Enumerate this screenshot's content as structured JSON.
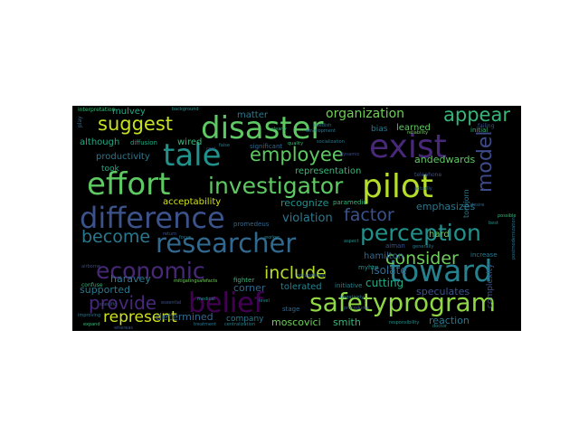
{
  "colors": {
    "background": "#ffffff",
    "cloud_background": "#000000",
    "palette": [
      "#440154",
      "#3b528b",
      "#21918c",
      "#5ec962",
      "#fde725",
      "#31688e",
      "#35b779",
      "#482878"
    ]
  },
  "words": [
    {
      "text": "difference",
      "color": "#3b528b"
    },
    {
      "text": "disaster",
      "color": "#5ec962"
    },
    {
      "text": "tale",
      "color": "#21918c"
    },
    {
      "text": "exist",
      "color": "#482878"
    },
    {
      "text": "effort",
      "color": "#5ec962"
    },
    {
      "text": "pilot",
      "color": "#b5de2b"
    },
    {
      "text": "researcher",
      "color": "#31688e"
    },
    {
      "text": "economic",
      "color": "#482878"
    },
    {
      "text": "toward",
      "color": "#26828e"
    },
    {
      "text": "belief",
      "color": "#440154"
    },
    {
      "text": "safetyprogram",
      "color": "#8fd744"
    },
    {
      "text": "investigator",
      "color": "#5ec962"
    },
    {
      "text": "perception",
      "color": "#21918c"
    },
    {
      "text": "employee",
      "color": "#5ec962"
    },
    {
      "text": "suggest",
      "color": "#c8e020"
    },
    {
      "text": "appear",
      "color": "#35b779"
    },
    {
      "text": "consider",
      "color": "#6ece58"
    },
    {
      "text": "model",
      "color": "#3e4a89"
    },
    {
      "text": "factor",
      "color": "#3b528b"
    },
    {
      "text": "become",
      "color": "#2a788e"
    },
    {
      "text": "include",
      "color": "#b5de2b"
    },
    {
      "text": "provide",
      "color": "#482878"
    },
    {
      "text": "represent",
      "color": "#d0e11c"
    },
    {
      "text": "organization",
      "color": "#6ece58"
    },
    {
      "text": "productivity",
      "color": "#2a788e"
    },
    {
      "text": "although",
      "color": "#22a884"
    },
    {
      "text": "andedwards",
      "color": "#5ec962"
    },
    {
      "text": "representation",
      "color": "#35b779"
    },
    {
      "text": "violation",
      "color": "#2a788e"
    },
    {
      "text": "recognize",
      "color": "#21918c"
    },
    {
      "text": "emphasizes",
      "color": "#2a788e"
    },
    {
      "text": "hamilton",
      "color": "#31688e"
    },
    {
      "text": "haravey",
      "color": "#2a788e"
    },
    {
      "text": "supported",
      "color": "#2a788e"
    },
    {
      "text": "determined",
      "color": "#31688e"
    },
    {
      "text": "cutting",
      "color": "#22a884"
    },
    {
      "text": "isolate",
      "color": "#31688e"
    },
    {
      "text": "speculates",
      "color": "#3b528b"
    },
    {
      "text": "reaction",
      "color": "#2a788e"
    },
    {
      "text": "moscovici",
      "color": "#6ece58"
    },
    {
      "text": "smith",
      "color": "#35b779"
    },
    {
      "text": "company",
      "color": "#2a788e"
    },
    {
      "text": "tolerated",
      "color": "#26828e"
    },
    {
      "text": "acceptability",
      "color": "#d0e11c"
    },
    {
      "text": "took",
      "color": "#22a884"
    },
    {
      "text": "hard",
      "color": "#6ece58"
    },
    {
      "text": "wired",
      "color": "#35b779"
    },
    {
      "text": "learned",
      "color": "#5ec962"
    },
    {
      "text": "matter",
      "color": "#2a788e"
    },
    {
      "text": "mulvey",
      "color": "#22a884"
    },
    {
      "text": "interpretation",
      "color": "#35b779"
    },
    {
      "text": "diffusion",
      "color": "#22a884"
    },
    {
      "text": "bias",
      "color": "#2a788e"
    },
    {
      "text": "corner",
      "color": "#31688e"
    },
    {
      "text": "stage",
      "color": "#31688e"
    },
    {
      "text": "initial",
      "color": "#35b779"
    },
    {
      "text": "significant",
      "color": "#31688e"
    },
    {
      "text": "initiative",
      "color": "#26828e"
    },
    {
      "text": "myhre",
      "color": "#21918c"
    },
    {
      "text": "paramedic",
      "color": "#35b779"
    },
    {
      "text": "aiman",
      "color": "#3b528b"
    },
    {
      "text": "telephone",
      "color": "#3b528b"
    },
    {
      "text": "increase",
      "color": "#2a788e"
    },
    {
      "text": "complexity",
      "color": "#3b528b"
    },
    {
      "text": "confuse",
      "color": "#35b779"
    },
    {
      "text": "fighter",
      "color": "#35b779"
    },
    {
      "text": "mitigatingsafefacts",
      "color": "#6ece58"
    },
    {
      "text": "responsibility",
      "color": "#21918c"
    },
    {
      "text": "treatment",
      "color": "#2a788e"
    },
    {
      "text": "medical",
      "color": "#21918c"
    },
    {
      "text": "reliability",
      "color": "#6ece58"
    },
    {
      "text": "development",
      "color": "#2a788e"
    },
    {
      "text": "socialization",
      "color": "#2a788e"
    },
    {
      "text": "torbjorn",
      "color": "#2a788e"
    },
    {
      "text": "occupational",
      "color": "#31688e"
    },
    {
      "text": "procedures",
      "color": "#3b528b"
    },
    {
      "text": "airborne",
      "color": "#3e4a89"
    },
    {
      "text": "specific",
      "color": "#3b528b"
    },
    {
      "text": "swedish",
      "color": "#2a788e"
    },
    {
      "text": "failing",
      "color": "#3b528b"
    },
    {
      "text": "background",
      "color": "#21918c"
    },
    {
      "text": "promedeus",
      "color": "#31688e"
    },
    {
      "text": "centralization",
      "color": "#26828e"
    },
    {
      "text": "postmodernization",
      "color": "#2a788e"
    },
    {
      "text": "essential",
      "color": "#3b528b"
    },
    {
      "text": "aspect",
      "color": "#21918c"
    },
    {
      "text": "dynamic",
      "color": "#3e4a89"
    },
    {
      "text": "clearly",
      "color": "#35b779"
    },
    {
      "text": "worker",
      "color": "#26828e"
    },
    {
      "text": "return",
      "color": "#3b528b"
    },
    {
      "text": "false",
      "color": "#2a788e"
    },
    {
      "text": "focus",
      "color": "#2a788e"
    },
    {
      "text": "desire",
      "color": "#31688e"
    },
    {
      "text": "actually",
      "color": "#31688e"
    },
    {
      "text": "possible",
      "color": "#35b779"
    },
    {
      "text": "level",
      "color": "#21918c"
    },
    {
      "text": "generally",
      "color": "#2a788e"
    },
    {
      "text": "best",
      "color": "#21918c"
    },
    {
      "text": "cost",
      "color": "#3b528b"
    },
    {
      "text": "negatively",
      "color": "#2a788e"
    },
    {
      "text": "improving",
      "color": "#2a788e"
    },
    {
      "text": "expand",
      "color": "#35b779"
    },
    {
      "text": "whereas",
      "color": "#3b528b"
    },
    {
      "text": "doctor",
      "color": "#21918c"
    },
    {
      "text": "play",
      "color": "#31688e"
    },
    {
      "text": "quality",
      "color": "#35b779"
    }
  ]
}
